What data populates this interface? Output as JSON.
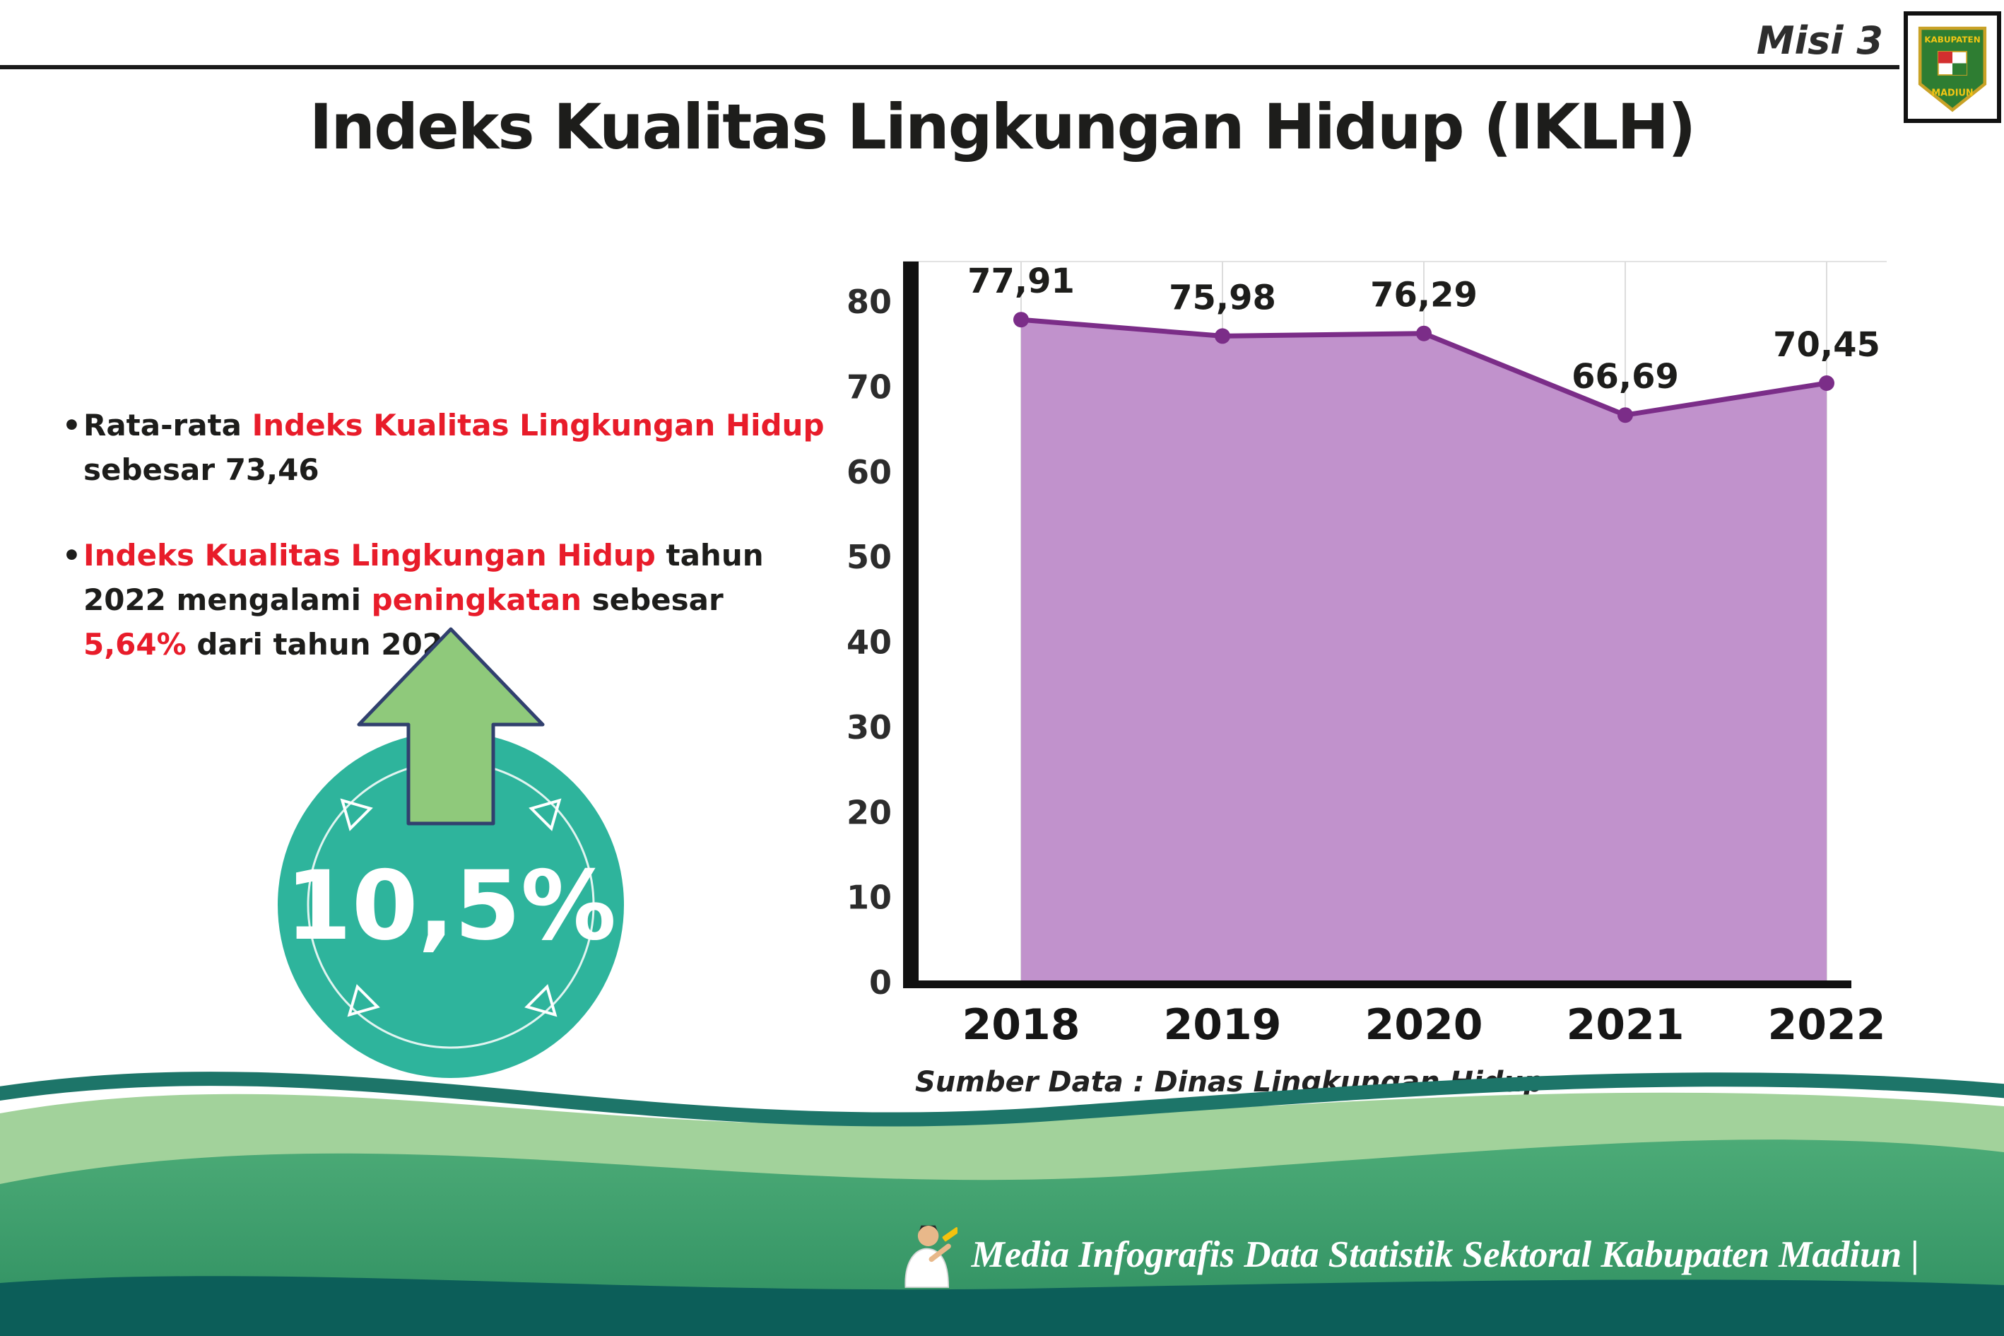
{
  "page": {
    "misi_label": "Misi 3",
    "title": "Indeks Kualitas Lingkungan Hidup (IKLH)",
    "source_note": "Sumber Data : Dinas Lingkungan Hidup"
  },
  "logo": {
    "text_top": "KABUPATEN",
    "text_bottom": "MADIUN"
  },
  "bullets": {
    "marker": "•",
    "item1": [
      {
        "t": "Rata-rata ",
        "c": "dark"
      },
      {
        "t": "Indeks Kualitas Lingkungan Hidup",
        "c": "red"
      },
      {
        "t": " sebesar 73,46",
        "c": "dark"
      }
    ],
    "item2": [
      {
        "t": "Indeks Kualitas Lingkungan Hidup",
        "c": "red"
      },
      {
        "t": " tahun 2022 mengalami ",
        "c": "dark"
      },
      {
        "t": "peningkatan",
        "c": "red"
      },
      {
        "t": " sebesar ",
        "c": "dark"
      },
      {
        "t": "5,64%",
        "c": "red"
      },
      {
        "t": " dari tahun 2021",
        "c": "dark"
      }
    ]
  },
  "badge": {
    "value": "10,5%",
    "circle_color": "#2eb49c",
    "arrow_color": "#8fc97b"
  },
  "chart_data": {
    "type": "area",
    "title": "",
    "categories": [
      "2018",
      "2019",
      "2020",
      "2021",
      "2022"
    ],
    "values": [
      77.91,
      75.98,
      76.29,
      66.69,
      70.45
    ],
    "value_labels": [
      "77,91",
      "75,98",
      "76,29",
      "66,69",
      "70,45"
    ],
    "ylim": [
      0,
      80
    ],
    "ytick_step": 10,
    "xlabel": "",
    "ylabel": "",
    "legend": "none",
    "grid": "vertical-light",
    "line_color": "#7b2d88",
    "fill_color": "#c192cc",
    "marker_color": "#7b2d88"
  },
  "footer": {
    "caption": "Media Infografis Data Statistik Sektoral Kabupaten Madiun |"
  },
  "colors": {
    "accent_red": "#e81c2a",
    "line_purple": "#7b2d88",
    "area_purple": "#c192cc",
    "badge_teal": "#2eb49c",
    "arrow_green": "#8fc97b",
    "footer_green": "#44a673",
    "footer_dark_teal": "#0c5e59"
  }
}
